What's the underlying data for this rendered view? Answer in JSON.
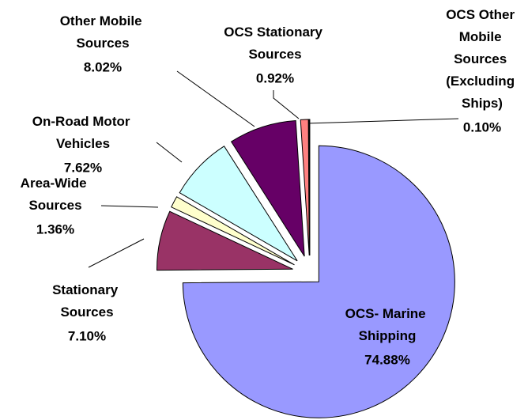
{
  "chart_data": {
    "type": "pie",
    "categories": [
      "OCS- Marine Shipping",
      "Stationary Sources",
      "Area-Wide Sources",
      "On-Road Motor Vehicles",
      "Other Mobile Sources",
      "OCS Stationary Sources",
      "OCS Other Mobile Sources (Excluding Ships)"
    ],
    "values": [
      74.88,
      7.1,
      1.36,
      7.62,
      8.02,
      0.92,
      0.1
    ],
    "value_labels": [
      "74.88%",
      "7.10%",
      "1.36%",
      "7.62%",
      "8.02%",
      "0.92%",
      "0.10%"
    ],
    "colors": [
      "#9999ff",
      "#993366",
      "#ffffcc",
      "#ccffff",
      "#660066",
      "#ff8080",
      "#000080"
    ]
  }
}
